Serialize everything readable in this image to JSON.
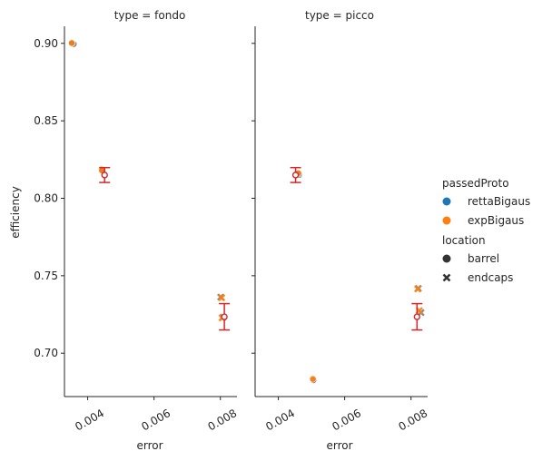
{
  "chart_data": {
    "type": "scatter",
    "xlabel": "error",
    "ylabel": "efficiency",
    "xlim": [
      0.0033,
      0.0085
    ],
    "ylim": [
      0.672,
      0.911
    ],
    "x_ticks": [
      0.004,
      0.006,
      0.008
    ],
    "x_tick_labels": [
      "0.004",
      "0.006",
      "0.008"
    ],
    "y_ticks": [
      0.7,
      0.75,
      0.8,
      0.85,
      0.9
    ],
    "y_tick_labels": [
      "0.70",
      "0.75",
      "0.80",
      "0.85",
      "0.90"
    ],
    "grid": false,
    "legend_placement": "right",
    "colors": {
      "rettaBigaus": "#1f77b4",
      "expBigaus": "#ff7f0e",
      "mean": "#d62728",
      "other": "#7f7f7f"
    },
    "legend": {
      "hue_title": "passedProto",
      "hue_entries": [
        {
          "label": "rettaBigaus",
          "color": "#1f77b4"
        },
        {
          "label": "expBigaus",
          "color": "#ff7f0e"
        }
      ],
      "style_title": "location",
      "style_entries": [
        {
          "label": "barrel",
          "marker": "circle"
        },
        {
          "label": "endcaps",
          "marker": "x"
        }
      ]
    },
    "panels": [
      {
        "title": "type = fondo",
        "points": [
          {
            "x": 0.00358,
            "y": 0.8995,
            "marker": "circle",
            "color": "#7f7f7f"
          },
          {
            "x": 0.00352,
            "y": 0.9002,
            "marker": "circle",
            "color": "#1f77b4"
          },
          {
            "x": 0.00352,
            "y": 0.9002,
            "marker": "circle",
            "color": "#ff7f0e"
          },
          {
            "x": 0.00442,
            "y": 0.8186,
            "marker": "circle",
            "color": "#ff7f0e"
          },
          {
            "x": 0.00443,
            "y": 0.8178,
            "marker": "circle",
            "color": "#1f77b4"
          },
          {
            "x": 0.00443,
            "y": 0.818,
            "marker": "circle",
            "color": "#ff7f0e"
          },
          {
            "x": 0.00801,
            "y": 0.7362,
            "marker": "x",
            "color": "#7f7f7f"
          },
          {
            "x": 0.00804,
            "y": 0.7358,
            "marker": "x",
            "color": "#ff7f0e"
          },
          {
            "x": 0.00808,
            "y": 0.7232,
            "marker": "x",
            "color": "#7f7f7f"
          },
          {
            "x": 0.00805,
            "y": 0.7228,
            "marker": "x",
            "color": "#ff7f0e"
          }
        ],
        "means": [
          {
            "x": 0.00451,
            "y": 0.815,
            "err": 0.0048
          },
          {
            "x": 0.00812,
            "y": 0.7235,
            "err": 0.0085
          }
        ]
      },
      {
        "title": "type = picco",
        "points": [
          {
            "x": 0.00463,
            "y": 0.815,
            "marker": "circle",
            "color": "#7f7f7f"
          },
          {
            "x": 0.00462,
            "y": 0.8158,
            "marker": "circle",
            "color": "#1f77b4"
          },
          {
            "x": 0.0046,
            "y": 0.8162,
            "marker": "circle",
            "color": "#ff7f0e"
          },
          {
            "x": 0.00506,
            "y": 0.6826,
            "marker": "circle",
            "color": "#7f7f7f"
          },
          {
            "x": 0.00504,
            "y": 0.6834,
            "marker": "circle",
            "color": "#ff7f0e"
          },
          {
            "x": 0.00822,
            "y": 0.7418,
            "marker": "x",
            "color": "#7f7f7f"
          },
          {
            "x": 0.0082,
            "y": 0.7415,
            "marker": "x",
            "color": "#ff7f0e"
          },
          {
            "x": 0.0083,
            "y": 0.7262,
            "marker": "x",
            "color": "#7f7f7f"
          },
          {
            "x": 0.00825,
            "y": 0.7275,
            "marker": "x",
            "color": "#ff7f0e"
          }
        ],
        "means": [
          {
            "x": 0.00452,
            "y": 0.815,
            "err": 0.0048
          },
          {
            "x": 0.00818,
            "y": 0.7235,
            "err": 0.0085
          }
        ]
      }
    ]
  }
}
